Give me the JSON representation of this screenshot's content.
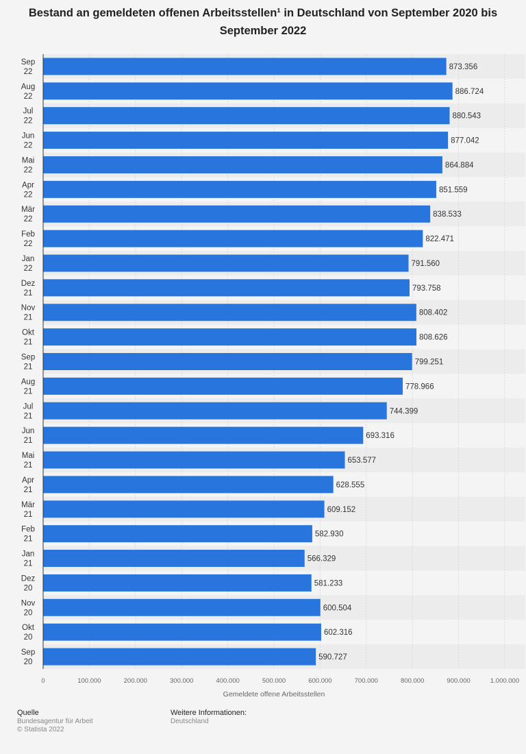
{
  "title": "Bestand an gemeldeten offenen Arbeitsstellen¹ in Deutschland von September 2020 bis September 2022",
  "footer": {
    "source_heading": "Quelle",
    "source": "Bundesagentur für Arbeit",
    "copyright": "© Statista 2022",
    "info_heading": "Weitere Informationen:",
    "info": "Deutschland"
  },
  "colors": {
    "bar": "#2876dd",
    "stripe": "#ececec",
    "background": "#f4f4f4",
    "grid": "#d9d9d9"
  },
  "chart_data": {
    "type": "bar",
    "orientation": "horizontal",
    "title": "Bestand an gemeldeten offenen Arbeitsstellen¹ in Deutschland von September 2020 bis September 2022",
    "xlabel": "Gemeldete offene Arbeitsstellen",
    "ylabel": "",
    "xlim": [
      0,
      1000000
    ],
    "xticks": [
      "0",
      "100.000",
      "200.000",
      "300.000",
      "400.000",
      "500.000",
      "600.000",
      "700.000",
      "800.000",
      "900.000",
      "1.000.000"
    ],
    "grid": true,
    "categories": [
      [
        "Sep",
        "22"
      ],
      [
        "Aug",
        "22"
      ],
      [
        "Jul",
        "22"
      ],
      [
        "Jun",
        "22"
      ],
      [
        "Mai",
        "22"
      ],
      [
        "Apr",
        "22"
      ],
      [
        "Mär",
        "22"
      ],
      [
        "Feb",
        "22"
      ],
      [
        "Jan",
        "22"
      ],
      [
        "Dez",
        "21"
      ],
      [
        "Nov",
        "21"
      ],
      [
        "Okt",
        "21"
      ],
      [
        "Sep",
        "21"
      ],
      [
        "Aug",
        "21"
      ],
      [
        "Jul",
        "21"
      ],
      [
        "Jun",
        "21"
      ],
      [
        "Mai",
        "21"
      ],
      [
        "Apr",
        "21"
      ],
      [
        "Mär",
        "21"
      ],
      [
        "Feb",
        "21"
      ],
      [
        "Jan",
        "21"
      ],
      [
        "Dez",
        "20"
      ],
      [
        "Nov",
        "20"
      ],
      [
        "Okt",
        "20"
      ],
      [
        "Sep",
        "20"
      ]
    ],
    "values": [
      873356,
      886724,
      880543,
      877042,
      864884,
      851559,
      838533,
      822471,
      791560,
      793758,
      808402,
      808626,
      799251,
      778966,
      744399,
      693316,
      653577,
      628555,
      609152,
      582930,
      566329,
      581233,
      600504,
      602316,
      590727
    ],
    "value_labels": [
      "873.356",
      "886.724",
      "880.543",
      "877.042",
      "864.884",
      "851.559",
      "838.533",
      "822.471",
      "791.560",
      "793.758",
      "808.402",
      "808.626",
      "799.251",
      "778.966",
      "744.399",
      "693.316",
      "653.577",
      "628.555",
      "609.152",
      "582.930",
      "566.329",
      "581.233",
      "600.504",
      "602.316",
      "590.727"
    ]
  }
}
